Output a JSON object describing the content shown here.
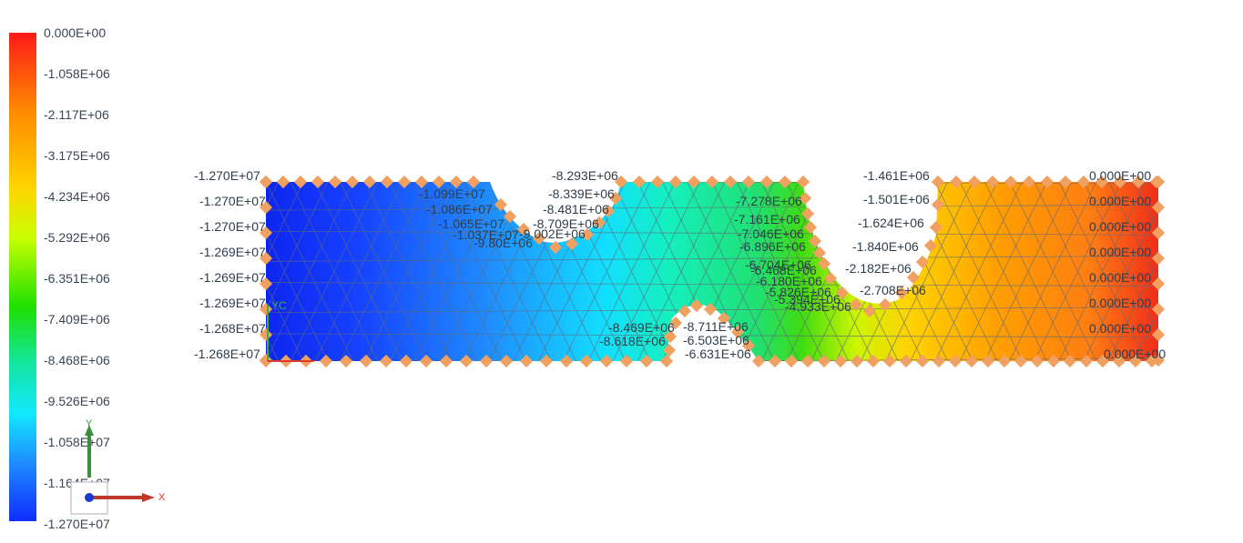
{
  "legend": {
    "labels": [
      "0.000E+00",
      "-1.058E+06",
      "-2.117E+06",
      "-3.175E+06",
      "-4.234E+06",
      "-5.292E+06",
      "-6.351E+06",
      "-7.409E+06",
      "-8.468E+06",
      "-9.526E+06",
      "-1.058E+07",
      "-1.164E+07",
      "-1.270E+07"
    ]
  },
  "triad": {
    "x_label": "X",
    "y_label": "Y"
  },
  "model": {
    "coord_label": "YC",
    "node_labels": [
      "-1.270E+07",
      "-1.270E+07",
      "-1.270E+07",
      "-1.269E+07",
      "-1.269E+07",
      "-1.269E+07",
      "-1.268E+07",
      "-1.268E+07",
      "-1.099E+07",
      "-1.086E+07",
      "-1.065E+07",
      "-1.037E+07",
      "-9.80E+06",
      "-8.339E+06",
      "-8.481E+06",
      "-8.709E+06",
      "-9.002E+06",
      "-8.293E+06",
      "-7.278E+06",
      "-7.161E+06",
      "-7.046E+06",
      "-6.896E+06",
      "-6.704E+06",
      "-6.468E+06",
      "-6.180E+06",
      "-5.826E+06",
      "-5.394E+06",
      "-4.933E+06",
      "-8.469E+06",
      "-8.618E+06",
      "-8.711E+06",
      "-6.503E+06",
      "-6.631E+06",
      "-1.461E+06",
      "-1.501E+06",
      "-1.624E+06",
      "-1.840E+06",
      "-2.182E+06",
      "-2.708E+06",
      "0.000E+00",
      "0.000E+00",
      "0.000E+00",
      "0.000E+00",
      "0.000E+00",
      "0.000E+00",
      "0.000E+00",
      "0.000E+00"
    ]
  }
}
